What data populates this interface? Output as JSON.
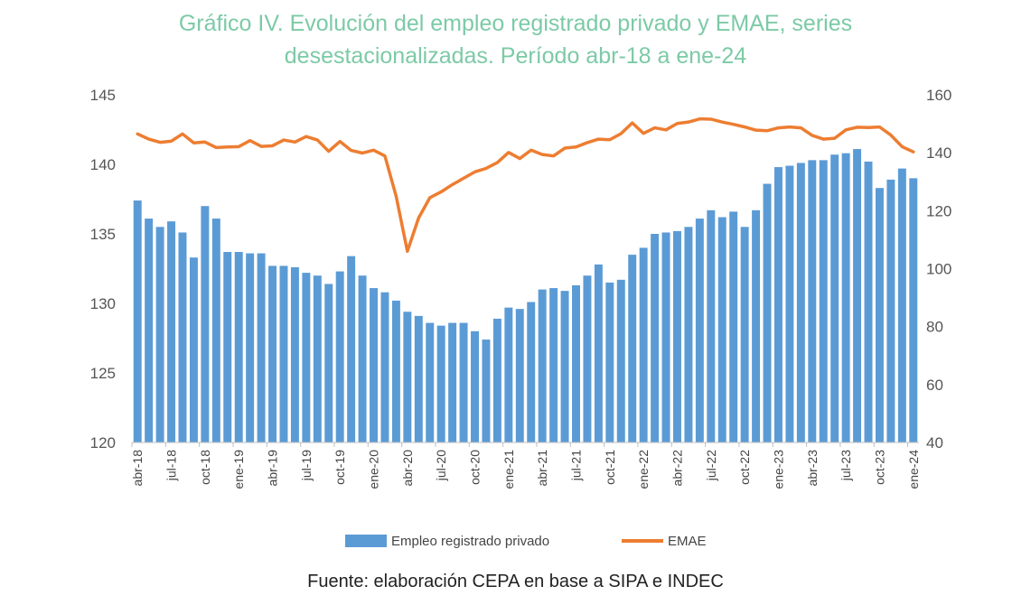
{
  "title_lines": [
    "Gráfico IV. Evolución del empleo registrado privado y EMAE, series",
    "desestacionalizadas. Período abr-18 a ene-24"
  ],
  "source": "Fuente: elaboración CEPA en base a SIPA e INDEC",
  "colors": {
    "bars": "#5b9bd5",
    "line": "#ed7d31",
    "title": "#7ccaa6",
    "axis": "#bfbfbf"
  },
  "chart_data": {
    "type": "bar",
    "grid": false,
    "legend_position": "bottom",
    "x_tick_labels": [
      "abr-18",
      "jul-18",
      "oct-18",
      "ene-19",
      "abr-19",
      "jul-19",
      "oct-19",
      "ene-20",
      "abr-20",
      "jul-20",
      "oct-20",
      "ene-21",
      "abr-21",
      "jul-21",
      "oct-21",
      "ene-22",
      "abr-22",
      "jul-22",
      "oct-22",
      "ene-23",
      "abr-23",
      "jul-23",
      "oct-23",
      "ene-24"
    ],
    "y_left": {
      "min": 120,
      "max": 145,
      "ticks": [
        120,
        125,
        130,
        135,
        140,
        145
      ]
    },
    "y_right": {
      "min": 40,
      "max": 160,
      "ticks": [
        40,
        60,
        80,
        100,
        120,
        140,
        160
      ]
    },
    "series": [
      {
        "name": "Empleo registrado privado",
        "type": "bar",
        "axis": "left",
        "values": [
          137.4,
          136.1,
          135.5,
          135.9,
          135.1,
          133.3,
          137.0,
          136.1,
          133.7,
          133.7,
          133.6,
          133.6,
          132.7,
          132.7,
          132.6,
          132.2,
          132.0,
          131.4,
          132.3,
          133.4,
          132.0,
          131.1,
          130.8,
          130.2,
          129.4,
          129.1,
          128.6,
          128.4,
          128.6,
          128.6,
          128.0,
          127.4,
          128.9,
          129.7,
          129.6,
          130.1,
          131.0,
          131.1,
          130.9,
          131.3,
          132.0,
          132.8,
          131.5,
          131.7,
          133.5,
          134.0,
          135.0,
          135.1,
          135.2,
          135.5,
          136.1,
          136.7,
          136.2,
          136.6,
          135.5,
          136.7,
          138.6,
          139.8,
          139.9,
          140.1,
          140.3,
          140.3,
          140.7,
          140.8,
          141.1,
          140.2,
          138.3,
          138.9,
          139.7,
          139.0
        ]
      },
      {
        "name": "EMAE",
        "type": "line",
        "axis": "right",
        "values": [
          146.5,
          144.7,
          143.6,
          144.0,
          146.5,
          143.4,
          143.7,
          141.8,
          142.0,
          142.1,
          144.2,
          142.2,
          142.4,
          144.4,
          143.7,
          145.6,
          144.4,
          140.5,
          143.9,
          140.8,
          139.9,
          140.9,
          138.9,
          125.0,
          106.0,
          117.5,
          124.5,
          126.5,
          129.0,
          131.2,
          133.4,
          134.6,
          136.6,
          140.1,
          138.0,
          140.9,
          139.4,
          138.9,
          141.6,
          142.0,
          143.5,
          144.7,
          144.5,
          146.6,
          150.3,
          146.7,
          148.6,
          147.9,
          150.1,
          150.6,
          151.7,
          151.6,
          150.6,
          149.8,
          148.9,
          147.8,
          147.6,
          148.6,
          148.9,
          148.6,
          146.0,
          144.7,
          145.0,
          147.9,
          148.8,
          148.7,
          148.9,
          146.1,
          142.1,
          140.3
        ]
      }
    ]
  }
}
